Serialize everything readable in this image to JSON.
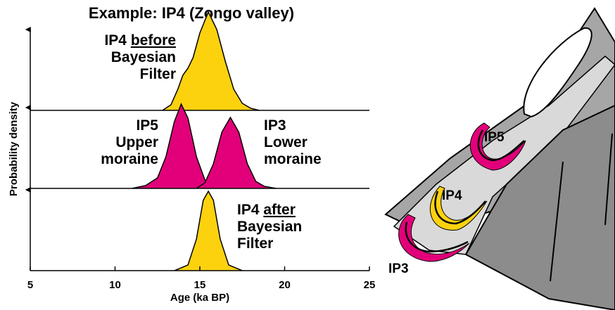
{
  "chart_data": {
    "type": "area",
    "title": "Example: IP4 (Zongo valley)",
    "xlabel": "Age (ka BP)",
    "ylabel": "Probability density",
    "xlim": [
      5,
      25
    ],
    "xticks": [
      5,
      10,
      15,
      20,
      25
    ],
    "ylim": [
      0,
      117
    ],
    "panels": [
      {
        "series": [
          {
            "color": "#fcd20f",
            "label": [
              [
                {
                  "text": "IP4 "
                },
                {
                  "text": "before",
                  "underline": true
                }
              ],
              [
                {
                  "text": "Bayesian"
                }
              ],
              [
                {
                  "text": "Filter"
                }
              ]
            ],
            "x": [
              12.8,
              13.3,
              13.7,
              14.0,
              14.3,
              14.6,
              15.0,
              15.5,
              16.0,
              16.5,
              17.0,
              17.5,
              18.0,
              18.5
            ],
            "values": [
              0,
              8,
              30,
              50,
              60,
              75,
              110,
              140,
              115,
              70,
              30,
              10,
              3,
              0
            ]
          }
        ]
      },
      {
        "series": [
          {
            "color": "#e2007a",
            "label": [
              [
                {
                  "text": "IP5"
                }
              ],
              [
                {
                  "text": "Upper"
                }
              ],
              [
                {
                  "text": "moraine"
                }
              ]
            ],
            "x": [
              11.0,
              11.8,
              12.5,
              13.0,
              13.5,
              13.9,
              14.3,
              14.8,
              15.3,
              15.8,
              16.2
            ],
            "values": [
              0,
              4,
              15,
              45,
              95,
              120,
              100,
              45,
              12,
              2,
              0
            ]
          },
          {
            "color": "#e2007a",
            "label": [
              [
                {
                  "text": "IP3"
                }
              ],
              [
                {
                  "text": "Lower"
                }
              ],
              [
                {
                  "text": "moraine"
                }
              ]
            ],
            "x": [
              14.8,
              15.3,
              15.8,
              16.3,
              16.8,
              17.3,
              17.8,
              18.3,
              18.8,
              19.5
            ],
            "values": [
              0,
              8,
              35,
              80,
              101,
              80,
              35,
              10,
              3,
              0
            ]
          }
        ]
      },
      {
        "series": [
          {
            "color": "#fcd20f",
            "label": [
              [
                {
                  "text": "IP4 "
                },
                {
                  "text": "after",
                  "underline": true
                }
              ],
              [
                {
                  "text": "Bayesian"
                }
              ],
              [
                {
                  "text": "Filter"
                }
              ]
            ],
            "x": [
              13.5,
              14.3,
              14.8,
              15.2,
              15.5,
              15.8,
              16.2,
              16.7,
              17.5
            ],
            "values": [
              0,
              8,
              45,
              100,
              113,
              100,
              45,
              8,
              0
            ]
          }
        ]
      }
    ]
  },
  "diagram": {
    "labels": [
      "IP5",
      "IP4",
      "IP3"
    ]
  }
}
